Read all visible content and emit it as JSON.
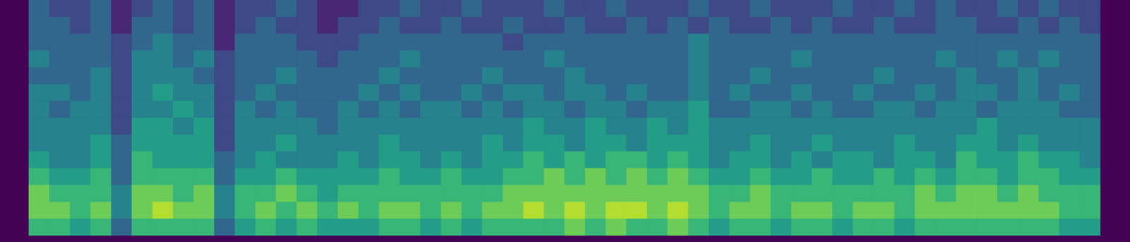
{
  "chart_data": {
    "type": "heatmap",
    "tick_labels": false,
    "zlim": [
      0,
      9
    ],
    "cells": [
      [
        3,
        2,
        2,
        3,
        1,
        2,
        3,
        2,
        3,
        1,
        2,
        2,
        3,
        2,
        1,
        1,
        2,
        2,
        3,
        2,
        2,
        3,
        2,
        2,
        2,
        3,
        2,
        2,
        3,
        2,
        2,
        2,
        3,
        2,
        2,
        3,
        2,
        2,
        2,
        3,
        2,
        2,
        3,
        2,
        3,
        2,
        2,
        3,
        2,
        3,
        2,
        2
      ],
      [
        3,
        3,
        2,
        3,
        1,
        3,
        3,
        2,
        3,
        1,
        2,
        3,
        2,
        2,
        1,
        2,
        2,
        3,
        2,
        2,
        3,
        2,
        2,
        3,
        2,
        2,
        3,
        2,
        2,
        3,
        2,
        3,
        2,
        3,
        2,
        2,
        3,
        2,
        3,
        2,
        2,
        3,
        2,
        2,
        3,
        3,
        2,
        2,
        3,
        2,
        3,
        2
      ],
      [
        3,
        3,
        3,
        3,
        2,
        3,
        4,
        3,
        3,
        1,
        3,
        3,
        3,
        2,
        2,
        2,
        3,
        3,
        3,
        3,
        3,
        3,
        3,
        2,
        3,
        3,
        3,
        3,
        3,
        3,
        3,
        3,
        4,
        3,
        3,
        3,
        3,
        3,
        3,
        3,
        3,
        3,
        3,
        3,
        3,
        3,
        3,
        3,
        3,
        3,
        3,
        3
      ],
      [
        4,
        3,
        3,
        3,
        2,
        4,
        4,
        3,
        4,
        2,
        3,
        3,
        3,
        3,
        2,
        3,
        3,
        3,
        4,
        3,
        3,
        3,
        3,
        3,
        3,
        4,
        3,
        3,
        3,
        3,
        3,
        3,
        4,
        3,
        3,
        3,
        3,
        4,
        3,
        3,
        3,
        3,
        3,
        3,
        4,
        3,
        3,
        4,
        3,
        4,
        3,
        3
      ],
      [
        3,
        3,
        3,
        4,
        2,
        4,
        4,
        4,
        3,
        2,
        3,
        3,
        4,
        3,
        3,
        3,
        3,
        4,
        3,
        3,
        3,
        3,
        4,
        3,
        3,
        3,
        4,
        3,
        3,
        3,
        3,
        3,
        4,
        3,
        3,
        4,
        3,
        3,
        3,
        3,
        3,
        4,
        3,
        3,
        3,
        4,
        3,
        3,
        4,
        3,
        3,
        3
      ],
      [
        4,
        4,
        3,
        4,
        2,
        4,
        5,
        4,
        4,
        2,
        3,
        4,
        3,
        3,
        3,
        3,
        4,
        3,
        4,
        3,
        3,
        4,
        3,
        4,
        4,
        3,
        4,
        4,
        3,
        4,
        3,
        3,
        4,
        3,
        4,
        3,
        3,
        4,
        3,
        3,
        4,
        3,
        3,
        4,
        3,
        4,
        4,
        3,
        4,
        3,
        4,
        3
      ],
      [
        4,
        3,
        4,
        4,
        2,
        4,
        4,
        5,
        4,
        2,
        4,
        3,
        4,
        3,
        3,
        4,
        3,
        4,
        3,
        4,
        4,
        3,
        4,
        3,
        4,
        4,
        3,
        4,
        4,
        3,
        4,
        4,
        5,
        3,
        3,
        4,
        4,
        3,
        4,
        3,
        3,
        4,
        4,
        3,
        4,
        4,
        3,
        4,
        4,
        4,
        3,
        3
      ],
      [
        4,
        4,
        4,
        4,
        2,
        5,
        5,
        4,
        5,
        2,
        4,
        4,
        4,
        4,
        3,
        4,
        4,
        4,
        4,
        4,
        4,
        4,
        4,
        4,
        5,
        4,
        4,
        5,
        4,
        4,
        5,
        4,
        5,
        4,
        4,
        4,
        4,
        4,
        4,
        4,
        4,
        4,
        4,
        4,
        4,
        4,
        5,
        4,
        4,
        4,
        4,
        4
      ],
      [
        4,
        4,
        4,
        5,
        3,
        5,
        5,
        5,
        5,
        2,
        4,
        4,
        5,
        4,
        4,
        4,
        4,
        5,
        4,
        4,
        4,
        4,
        5,
        4,
        5,
        5,
        4,
        5,
        5,
        4,
        5,
        5,
        5,
        4,
        4,
        5,
        4,
        4,
        5,
        4,
        4,
        4,
        5,
        4,
        4,
        5,
        5,
        4,
        5,
        4,
        4,
        4
      ],
      [
        5,
        4,
        4,
        5,
        3,
        6,
        5,
        5,
        5,
        3,
        4,
        5,
        4,
        4,
        4,
        5,
        4,
        5,
        5,
        4,
        5,
        4,
        5,
        5,
        6,
        5,
        6,
        5,
        6,
        6,
        5,
        6,
        5,
        4,
        5,
        5,
        4,
        5,
        4,
        5,
        5,
        4,
        5,
        5,
        4,
        6,
        5,
        5,
        6,
        5,
        5,
        4
      ],
      [
        6,
        5,
        5,
        6,
        3,
        6,
        6,
        6,
        6,
        3,
        5,
        5,
        6,
        5,
        5,
        5,
        5,
        6,
        5,
        5,
        6,
        5,
        5,
        6,
        6,
        7,
        6,
        7,
        6,
        7,
        6,
        7,
        6,
        5,
        5,
        6,
        5,
        5,
        6,
        5,
        5,
        6,
        5,
        6,
        5,
        6,
        6,
        5,
        6,
        6,
        5,
        5
      ],
      [
        7,
        6,
        6,
        6,
        4,
        7,
        7,
        6,
        7,
        4,
        6,
        6,
        7,
        6,
        5,
        6,
        6,
        6,
        6,
        6,
        6,
        6,
        6,
        7,
        7,
        7,
        7,
        7,
        7,
        7,
        7,
        7,
        7,
        6,
        6,
        7,
        6,
        6,
        6,
        6,
        6,
        6,
        6,
        7,
        6,
        7,
        7,
        6,
        7,
        6,
        6,
        6
      ],
      [
        7,
        7,
        6,
        7,
        4,
        7,
        8,
        7,
        7,
        4,
        6,
        7,
        6,
        7,
        6,
        7,
        6,
        7,
        7,
        6,
        7,
        6,
        7,
        7,
        8,
        7,
        8,
        7,
        8,
        8,
        7,
        8,
        7,
        6,
        7,
        7,
        6,
        7,
        7,
        6,
        7,
        7,
        6,
        7,
        7,
        7,
        7,
        7,
        7,
        7,
        6,
        6
      ],
      [
        6,
        6,
        5,
        6,
        3,
        6,
        6,
        6,
        6,
        3,
        5,
        6,
        5,
        6,
        5,
        5,
        5,
        6,
        6,
        5,
        6,
        5,
        6,
        6,
        6,
        6,
        7,
        6,
        7,
        6,
        6,
        7,
        6,
        5,
        6,
        6,
        5,
        6,
        6,
        5,
        6,
        6,
        5,
        6,
        6,
        6,
        6,
        6,
        6,
        6,
        5,
        5
      ]
    ]
  }
}
